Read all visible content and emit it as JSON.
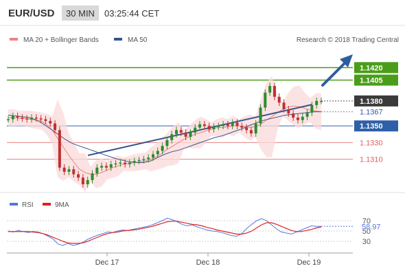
{
  "header": {
    "symbol": "EUR/USD",
    "timeframe": "30 MIN",
    "time": "03:25:44 CET"
  },
  "legend": {
    "bollinger_label": "MA 20 + Bollinger Bands",
    "ma50_label": "MA 50",
    "research": "Research © 2018 Trading Central"
  },
  "colors": {
    "bollinger": "#f08080",
    "ma50": "#33558f",
    "green_level": "#4a9d1a",
    "blue_level": "#2f5fa8",
    "current": "#3a3a3a",
    "red_level": "#e06060",
    "candle_up": "#2d8b2d",
    "candle_down": "#c03030",
    "rsi": "#5577dd",
    "rsi_ma": "#dd2222",
    "arrow": "#2e5d9f"
  },
  "chart_data": [
    {
      "type": "line",
      "title": "EUR/USD 30 MIN",
      "ylim": [
        1.128,
        1.145
      ],
      "x_ticks": [
        "Dec 17",
        "Dec 18",
        "Dec 19"
      ],
      "levels": [
        {
          "value": 1.142,
          "label": "1.1420",
          "kind": "resistance-green"
        },
        {
          "value": 1.1405,
          "label": "1.1405",
          "kind": "resistance-green"
        },
        {
          "value": 1.138,
          "label": "1.1380",
          "kind": "current"
        },
        {
          "value": 1.1367,
          "label": "1.1367",
          "kind": "ma"
        },
        {
          "value": 1.135,
          "label": "1.1350",
          "kind": "pivot-blue"
        },
        {
          "value": 1.133,
          "label": "1.1330",
          "kind": "support-red"
        },
        {
          "value": 1.131,
          "label": "1.1310",
          "kind": "support-red"
        }
      ],
      "series": [
        {
          "name": "MA 20 + Bollinger Bands"
        },
        {
          "name": "MA 50"
        }
      ],
      "close": [
        1.1358,
        1.1362,
        1.136,
        1.1359,
        1.1358,
        1.136,
        1.1359,
        1.1358,
        1.1356,
        1.1353,
        1.1345,
        1.13,
        1.1295,
        1.1298,
        1.1292,
        1.1288,
        1.128,
        1.1285,
        1.1293,
        1.13,
        1.1302,
        1.13,
        1.1304,
        1.1305,
        1.1306,
        1.1304,
        1.1306,
        1.1308,
        1.1309,
        1.131,
        1.1312,
        1.1316,
        1.132,
        1.1326,
        1.1333,
        1.134,
        1.1345,
        1.1342,
        1.1337,
        1.1342,
        1.1348,
        1.1352,
        1.135,
        1.1346,
        1.1349,
        1.135,
        1.1352,
        1.135,
        1.1354,
        1.135,
        1.1348,
        1.1345,
        1.1341,
        1.1353,
        1.1372,
        1.139,
        1.1398,
        1.1385,
        1.1378,
        1.137,
        1.1365,
        1.136,
        1.1357,
        1.1361,
        1.1366,
        1.1375,
        1.138,
        1.138
      ],
      "ma20": [
        1.136,
        1.136,
        1.1359,
        1.1359,
        1.1358,
        1.1357,
        1.1356,
        1.1352,
        1.1345,
        1.1335,
        1.1325,
        1.1315,
        1.1306,
        1.1298,
        1.1294,
        1.1292,
        1.1292,
        1.1294,
        1.1297,
        1.13,
        1.1302,
        1.1304,
        1.1305,
        1.1306,
        1.1307,
        1.1308,
        1.131,
        1.1313,
        1.1317,
        1.1322,
        1.1326,
        1.133,
        1.1334,
        1.1337,
        1.134,
        1.1342,
        1.1344,
        1.1346,
        1.1348,
        1.1348,
        1.1349,
        1.135,
        1.135,
        1.1349,
        1.1348,
        1.1349,
        1.1352,
        1.1357,
        1.1361,
        1.1366,
        1.137,
        1.1373,
        1.1374,
        1.1373,
        1.1371,
        1.1369,
        1.1368,
        1.1367
      ],
      "ma50": [
        1.1363,
        1.1362,
        1.1361,
        1.136,
        1.1357,
        1.1352,
        1.1346,
        1.134,
        1.1334,
        1.1329,
        1.1326,
        1.1323,
        1.132,
        1.1317,
        1.1314,
        1.1311,
        1.1309,
        1.1307,
        1.1306,
        1.1306,
        1.1308,
        1.1312,
        1.1316,
        1.1319,
        1.1321,
        1.1324,
        1.1327,
        1.133,
        1.1333,
        1.1336,
        1.1338,
        1.1341,
        1.1344,
        1.1347,
        1.1351,
        1.1354,
        1.1357,
        1.1359,
        1.1361,
        1.1363,
        1.1364,
        1.1365,
        1.1366,
        1.1367,
        1.1367
      ]
    },
    {
      "type": "line",
      "title": "RSI",
      "ylim": [
        10,
        90
      ],
      "y_ticks": [
        70,
        50,
        30
      ],
      "current_value": "58.97",
      "x_ticks": [
        "Dec 17",
        "Dec 18",
        "Dec 19"
      ],
      "series": [
        {
          "name": "RSI",
          "values": [
            50,
            48,
            51,
            49,
            47,
            49,
            48,
            45,
            40,
            35,
            25,
            22,
            26,
            22,
            24,
            28,
            34,
            38,
            42,
            45,
            48,
            47,
            50,
            52,
            51,
            53,
            55,
            57,
            59,
            62,
            66,
            70,
            75,
            72,
            68,
            63,
            60,
            62,
            58,
            55,
            52,
            50,
            49,
            47,
            44,
            41,
            40,
            45,
            55,
            63,
            70,
            74,
            70,
            62,
            54,
            48,
            46,
            44,
            48,
            52,
            56,
            60,
            59,
            59
          ]
        },
        {
          "name": "9MA",
          "values": [
            49,
            49,
            49,
            49,
            49,
            48,
            47,
            45,
            42,
            38,
            34,
            30,
            27,
            26,
            26,
            27,
            30,
            34,
            38,
            42,
            45,
            47,
            48,
            50,
            51,
            52,
            53,
            55,
            57,
            59,
            62,
            65,
            68,
            69,
            69,
            67,
            65,
            63,
            62,
            60,
            57,
            55,
            52,
            50,
            48,
            46,
            44,
            44,
            46,
            50,
            56,
            62,
            66,
            66,
            63,
            59,
            55,
            51,
            49,
            49,
            51,
            53,
            56,
            58
          ]
        }
      ]
    }
  ]
}
